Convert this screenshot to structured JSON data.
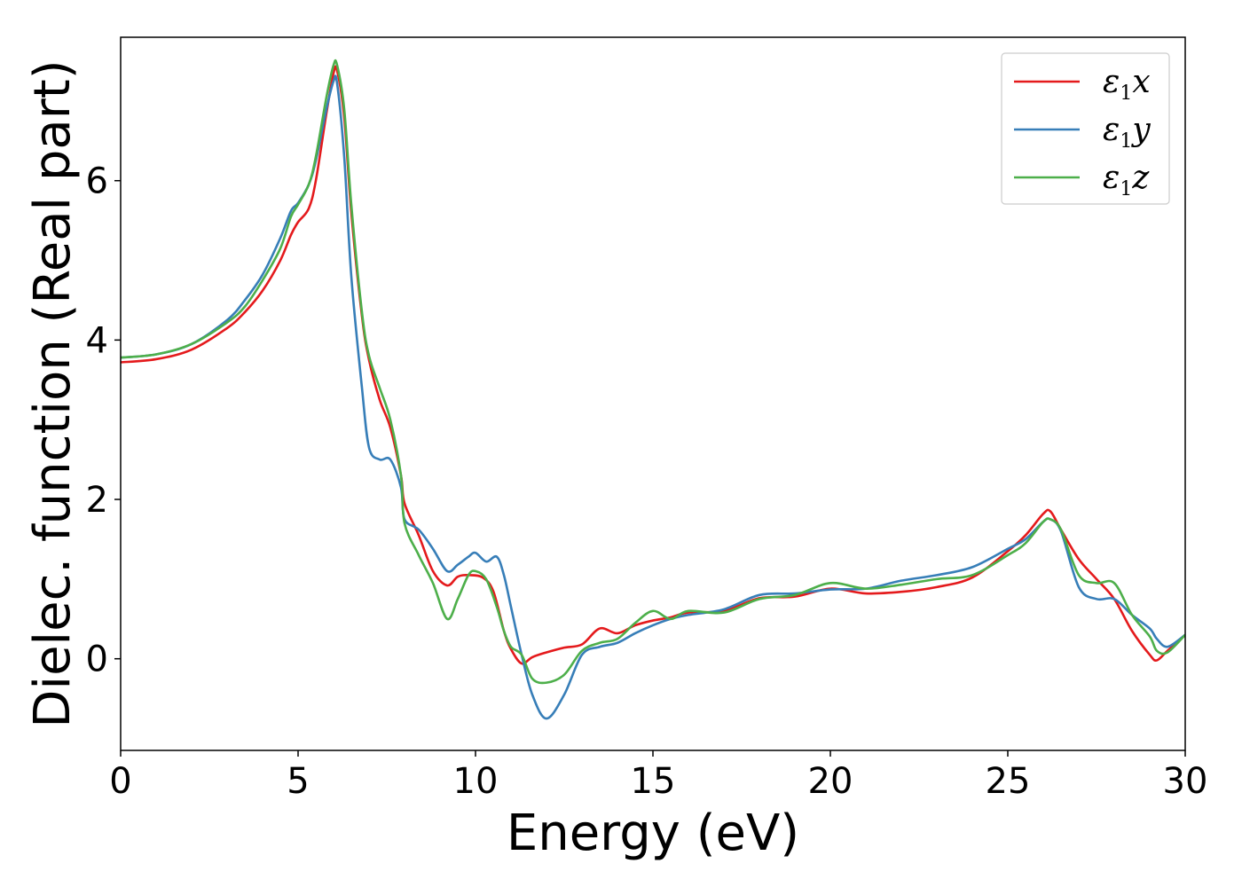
{
  "chart_data": {
    "type": "line",
    "title": "",
    "xlabel": "Energy (eV)",
    "ylabel": "Dielec. function (Real part)",
    "xlim": [
      0,
      30
    ],
    "ylim": [
      -1.15,
      7.8
    ],
    "xticks": [
      0,
      5,
      10,
      15,
      20,
      25,
      30
    ],
    "yticks": [
      0,
      2,
      4,
      6
    ],
    "grid": false,
    "legend_position": "top-right",
    "series": [
      {
        "name": "ε1x",
        "legend": {
          "base": "ε",
          "sub": "1",
          "axis": "x"
        },
        "color": "#e41a1c",
        "x": [
          0,
          1,
          2,
          3,
          3.5,
          4,
          4.5,
          4.8,
          5,
          5.3,
          5.5,
          5.8,
          6.0,
          6.1,
          6.3,
          6.5,
          6.8,
          7.0,
          7.3,
          7.6,
          7.9,
          8.0,
          8.4,
          8.8,
          9.2,
          9.5,
          9.8,
          10.2,
          10.5,
          10.8,
          11.0,
          11.3,
          11.6,
          12.0,
          12.5,
          13,
          13.5,
          14,
          14.5,
          15,
          15.5,
          16,
          17,
          18,
          19,
          20,
          21,
          22,
          23,
          24,
          25,
          25.5,
          26,
          26.2,
          26.5,
          27,
          27.5,
          28,
          28.5,
          29,
          29.2,
          29.5,
          30
        ],
        "y": [
          3.72,
          3.76,
          3.88,
          4.15,
          4.35,
          4.62,
          5.0,
          5.32,
          5.48,
          5.65,
          6.0,
          6.85,
          7.35,
          7.38,
          6.8,
          5.6,
          4.3,
          3.75,
          3.25,
          2.9,
          2.3,
          1.95,
          1.55,
          1.1,
          0.92,
          1.03,
          1.05,
          1.02,
          0.85,
          0.35,
          0.12,
          -0.06,
          0.02,
          0.08,
          0.14,
          0.18,
          0.38,
          0.32,
          0.42,
          0.48,
          0.52,
          0.58,
          0.6,
          0.76,
          0.78,
          0.88,
          0.82,
          0.84,
          0.9,
          1.02,
          1.35,
          1.55,
          1.82,
          1.85,
          1.62,
          1.25,
          1.0,
          0.75,
          0.35,
          0.05,
          -0.02,
          0.1,
          0.3
        ]
      },
      {
        "name": "ε1y",
        "legend": {
          "base": "ε",
          "sub": "1",
          "axis": "y"
        },
        "color": "#377eb8",
        "x": [
          0,
          1,
          2,
          3,
          3.5,
          4,
          4.5,
          4.8,
          5,
          5.3,
          5.5,
          5.8,
          6.0,
          6.1,
          6.3,
          6.5,
          6.8,
          7.0,
          7.3,
          7.6,
          7.9,
          8.0,
          8.4,
          8.8,
          9.2,
          9.5,
          9.8,
          10.0,
          10.3,
          10.6,
          10.8,
          11.0,
          11.3,
          11.6,
          12.0,
          12.5,
          13,
          13.5,
          14,
          14.5,
          15,
          15.5,
          16,
          17,
          18,
          19,
          20,
          21,
          22,
          23,
          24,
          25,
          25.5,
          26,
          26.2,
          26.5,
          27,
          27.5,
          28,
          28.5,
          29,
          29.2,
          29.5,
          30
        ],
        "y": [
          3.78,
          3.82,
          3.95,
          4.25,
          4.5,
          4.82,
          5.28,
          5.62,
          5.72,
          5.95,
          6.25,
          6.9,
          7.25,
          7.22,
          6.3,
          4.8,
          3.4,
          2.65,
          2.5,
          2.5,
          2.15,
          1.75,
          1.62,
          1.38,
          1.1,
          1.18,
          1.28,
          1.33,
          1.22,
          1.28,
          1.05,
          0.65,
          0.05,
          -0.45,
          -0.75,
          -0.45,
          0.05,
          0.15,
          0.2,
          0.32,
          0.42,
          0.5,
          0.55,
          0.62,
          0.8,
          0.82,
          0.87,
          0.88,
          0.98,
          1.05,
          1.15,
          1.38,
          1.5,
          1.72,
          1.75,
          1.6,
          0.9,
          0.75,
          0.75,
          0.55,
          0.38,
          0.25,
          0.15,
          0.3
        ]
      },
      {
        "name": "ε1z",
        "legend": {
          "base": "ε",
          "sub": "1",
          "axis": "z"
        },
        "color": "#4daf4a",
        "x": [
          0,
          1,
          2,
          3,
          3.5,
          4,
          4.5,
          4.8,
          5,
          5.3,
          5.5,
          5.8,
          6.0,
          6.1,
          6.3,
          6.5,
          6.8,
          7.0,
          7.3,
          7.6,
          7.9,
          8.0,
          8.4,
          8.8,
          9.2,
          9.5,
          9.8,
          10.0,
          10.3,
          10.6,
          10.8,
          11.0,
          11.3,
          11.6,
          12.0,
          12.5,
          13,
          13.5,
          14,
          14.5,
          15,
          15.5,
          16,
          17,
          18,
          19,
          20,
          21,
          22,
          23,
          24,
          25,
          25.5,
          26,
          26.2,
          26.5,
          27,
          27.5,
          28,
          28.5,
          29,
          29.2,
          29.5,
          30
        ],
        "y": [
          3.78,
          3.82,
          3.95,
          4.22,
          4.42,
          4.75,
          5.15,
          5.55,
          5.7,
          5.95,
          6.3,
          7.05,
          7.45,
          7.45,
          6.9,
          5.7,
          4.35,
          3.8,
          3.4,
          3.0,
          2.3,
          1.7,
          1.3,
          0.95,
          0.5,
          0.75,
          1.05,
          1.1,
          1.0,
          0.65,
          0.35,
          0.15,
          0.05,
          -0.25,
          -0.3,
          -0.2,
          0.1,
          0.2,
          0.25,
          0.45,
          0.6,
          0.5,
          0.6,
          0.58,
          0.75,
          0.8,
          0.95,
          0.88,
          0.93,
          1.0,
          1.05,
          1.3,
          1.45,
          1.72,
          1.75,
          1.62,
          1.05,
          0.95,
          0.95,
          0.55,
          0.28,
          0.1,
          0.08,
          0.3
        ]
      }
    ]
  }
}
